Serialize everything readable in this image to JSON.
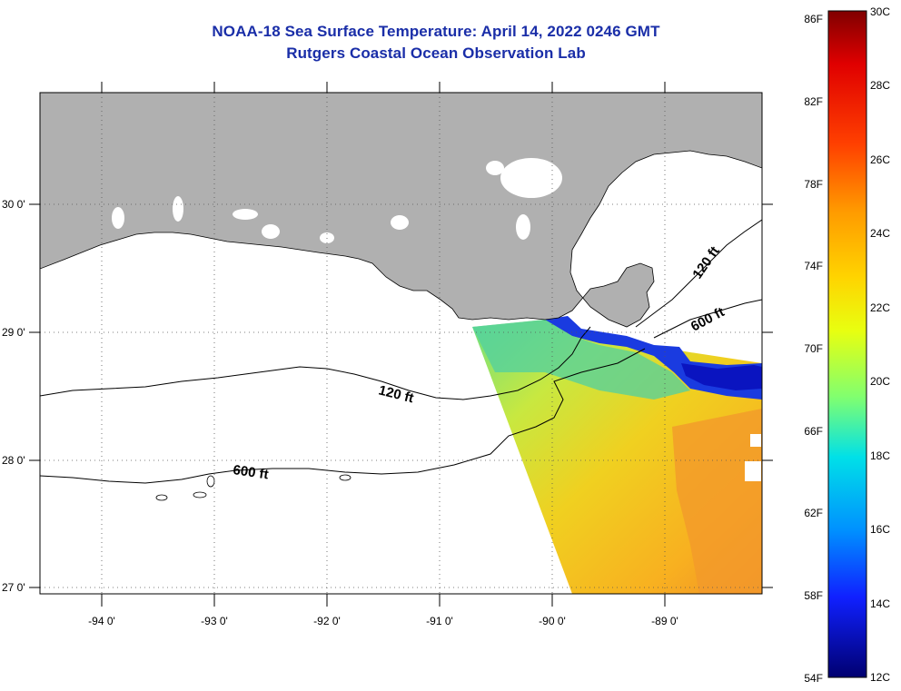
{
  "header": {
    "title": "NOAA-18 Sea Surface Temperature:  April 14, 2022 0246 GMT",
    "subtitle": "Rutgers Coastal Ocean Observation Lab"
  },
  "map": {
    "lat_labels": [
      "30 0'",
      "29 0'",
      "28 0'",
      "27 0'"
    ],
    "lon_labels": [
      "-94 0'",
      "-93 0'",
      "-92 0'",
      "-91 0'",
      "-90 0'",
      "-89 0'"
    ],
    "contours": {
      "inner_120_left": "120 ft",
      "inner_600_left": "600 ft",
      "outer_120_right": "120 ft",
      "outer_600_right": "600 ft"
    },
    "colors": {
      "land": "#b0b0b0",
      "ocean_background": "#ffffff",
      "title": "#1a2ea8"
    }
  },
  "colorbar": {
    "fahrenheit_labels": [
      "86F",
      "82F",
      "78F",
      "74F",
      "70F",
      "66F",
      "62F",
      "58F",
      "54F"
    ],
    "celsius_labels": [
      "30C",
      "28C",
      "26C",
      "24C",
      "22C",
      "20C",
      "18C",
      "16C",
      "14C",
      "12C"
    ],
    "range_c": [
      12,
      30
    ],
    "range_f": [
      54,
      86
    ]
  }
}
